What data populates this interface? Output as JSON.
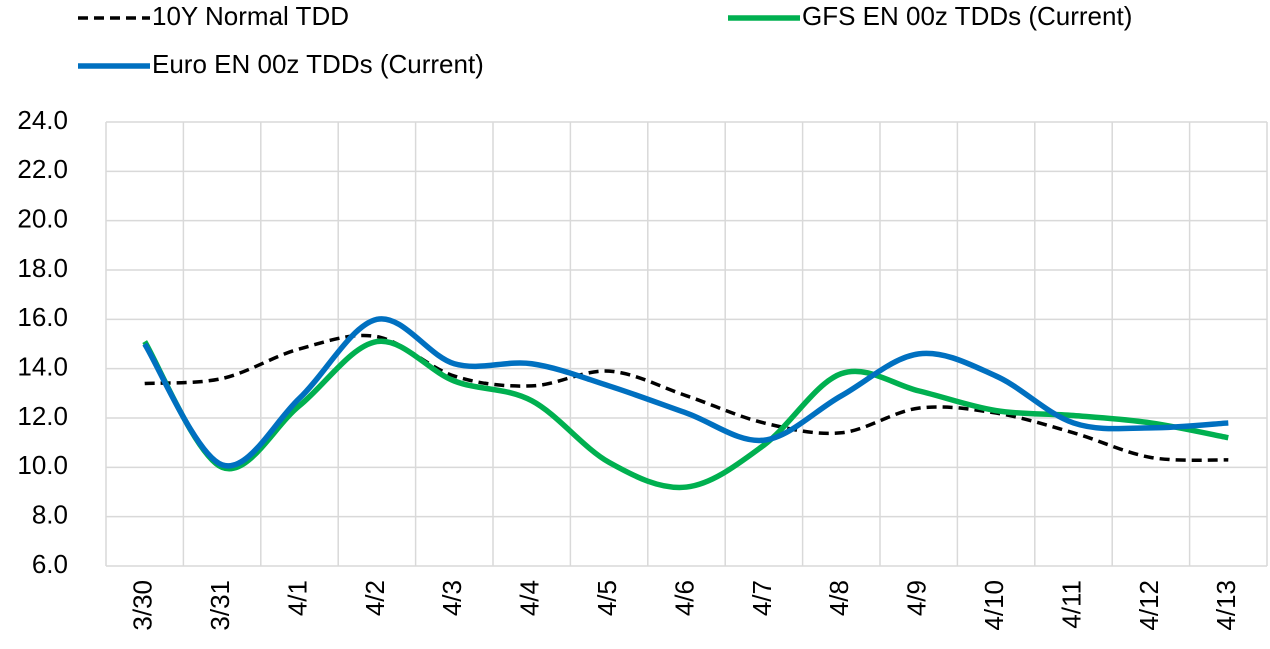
{
  "chart_data": {
    "type": "line",
    "categories": [
      "3/30",
      "3/31",
      "4/1",
      "4/2",
      "4/3",
      "4/4",
      "4/5",
      "4/6",
      "4/7",
      "4/8",
      "4/9",
      "4/10",
      "4/11",
      "4/12",
      "4/13"
    ],
    "series": [
      {
        "name": "10Y Normal TDD",
        "color": "#000000",
        "dash": true,
        "values": [
          13.4,
          13.6,
          14.8,
          15.3,
          13.7,
          13.3,
          13.9,
          12.9,
          11.8,
          11.4,
          12.4,
          12.2,
          11.4,
          10.4,
          10.3
        ]
      },
      {
        "name": "GFS EN 00z TDDs (Current)",
        "color": "#00b050",
        "dash": false,
        "values": [
          15.1,
          10.0,
          12.5,
          15.1,
          13.5,
          12.7,
          10.2,
          9.2,
          10.9,
          13.8,
          13.1,
          12.3,
          12.1,
          11.8,
          11.2
        ]
      },
      {
        "name": "Euro EN 00z TDDs (Current)",
        "color": "#0070c0",
        "dash": false,
        "values": [
          15.0,
          10.1,
          12.8,
          16.0,
          14.2,
          14.2,
          13.3,
          12.2,
          11.1,
          12.9,
          14.6,
          13.7,
          11.8,
          11.6,
          11.8
        ]
      }
    ],
    "ylim": [
      6,
      24
    ],
    "yticks": [
      {
        "value": 6,
        "label": "6.0"
      },
      {
        "value": 8,
        "label": "8.0"
      },
      {
        "value": 10,
        "label": "10.0"
      },
      {
        "value": 12,
        "label": "12.0"
      },
      {
        "value": 14,
        "label": "14.0"
      },
      {
        "value": 16,
        "label": "16.0"
      },
      {
        "value": 18,
        "label": "18.0"
      },
      {
        "value": 20,
        "label": "20.0"
      },
      {
        "value": 22,
        "label": "22.0"
      },
      {
        "value": 24,
        "label": "24.0"
      }
    ],
    "grid": true,
    "smooth": true,
    "legend": "top"
  }
}
